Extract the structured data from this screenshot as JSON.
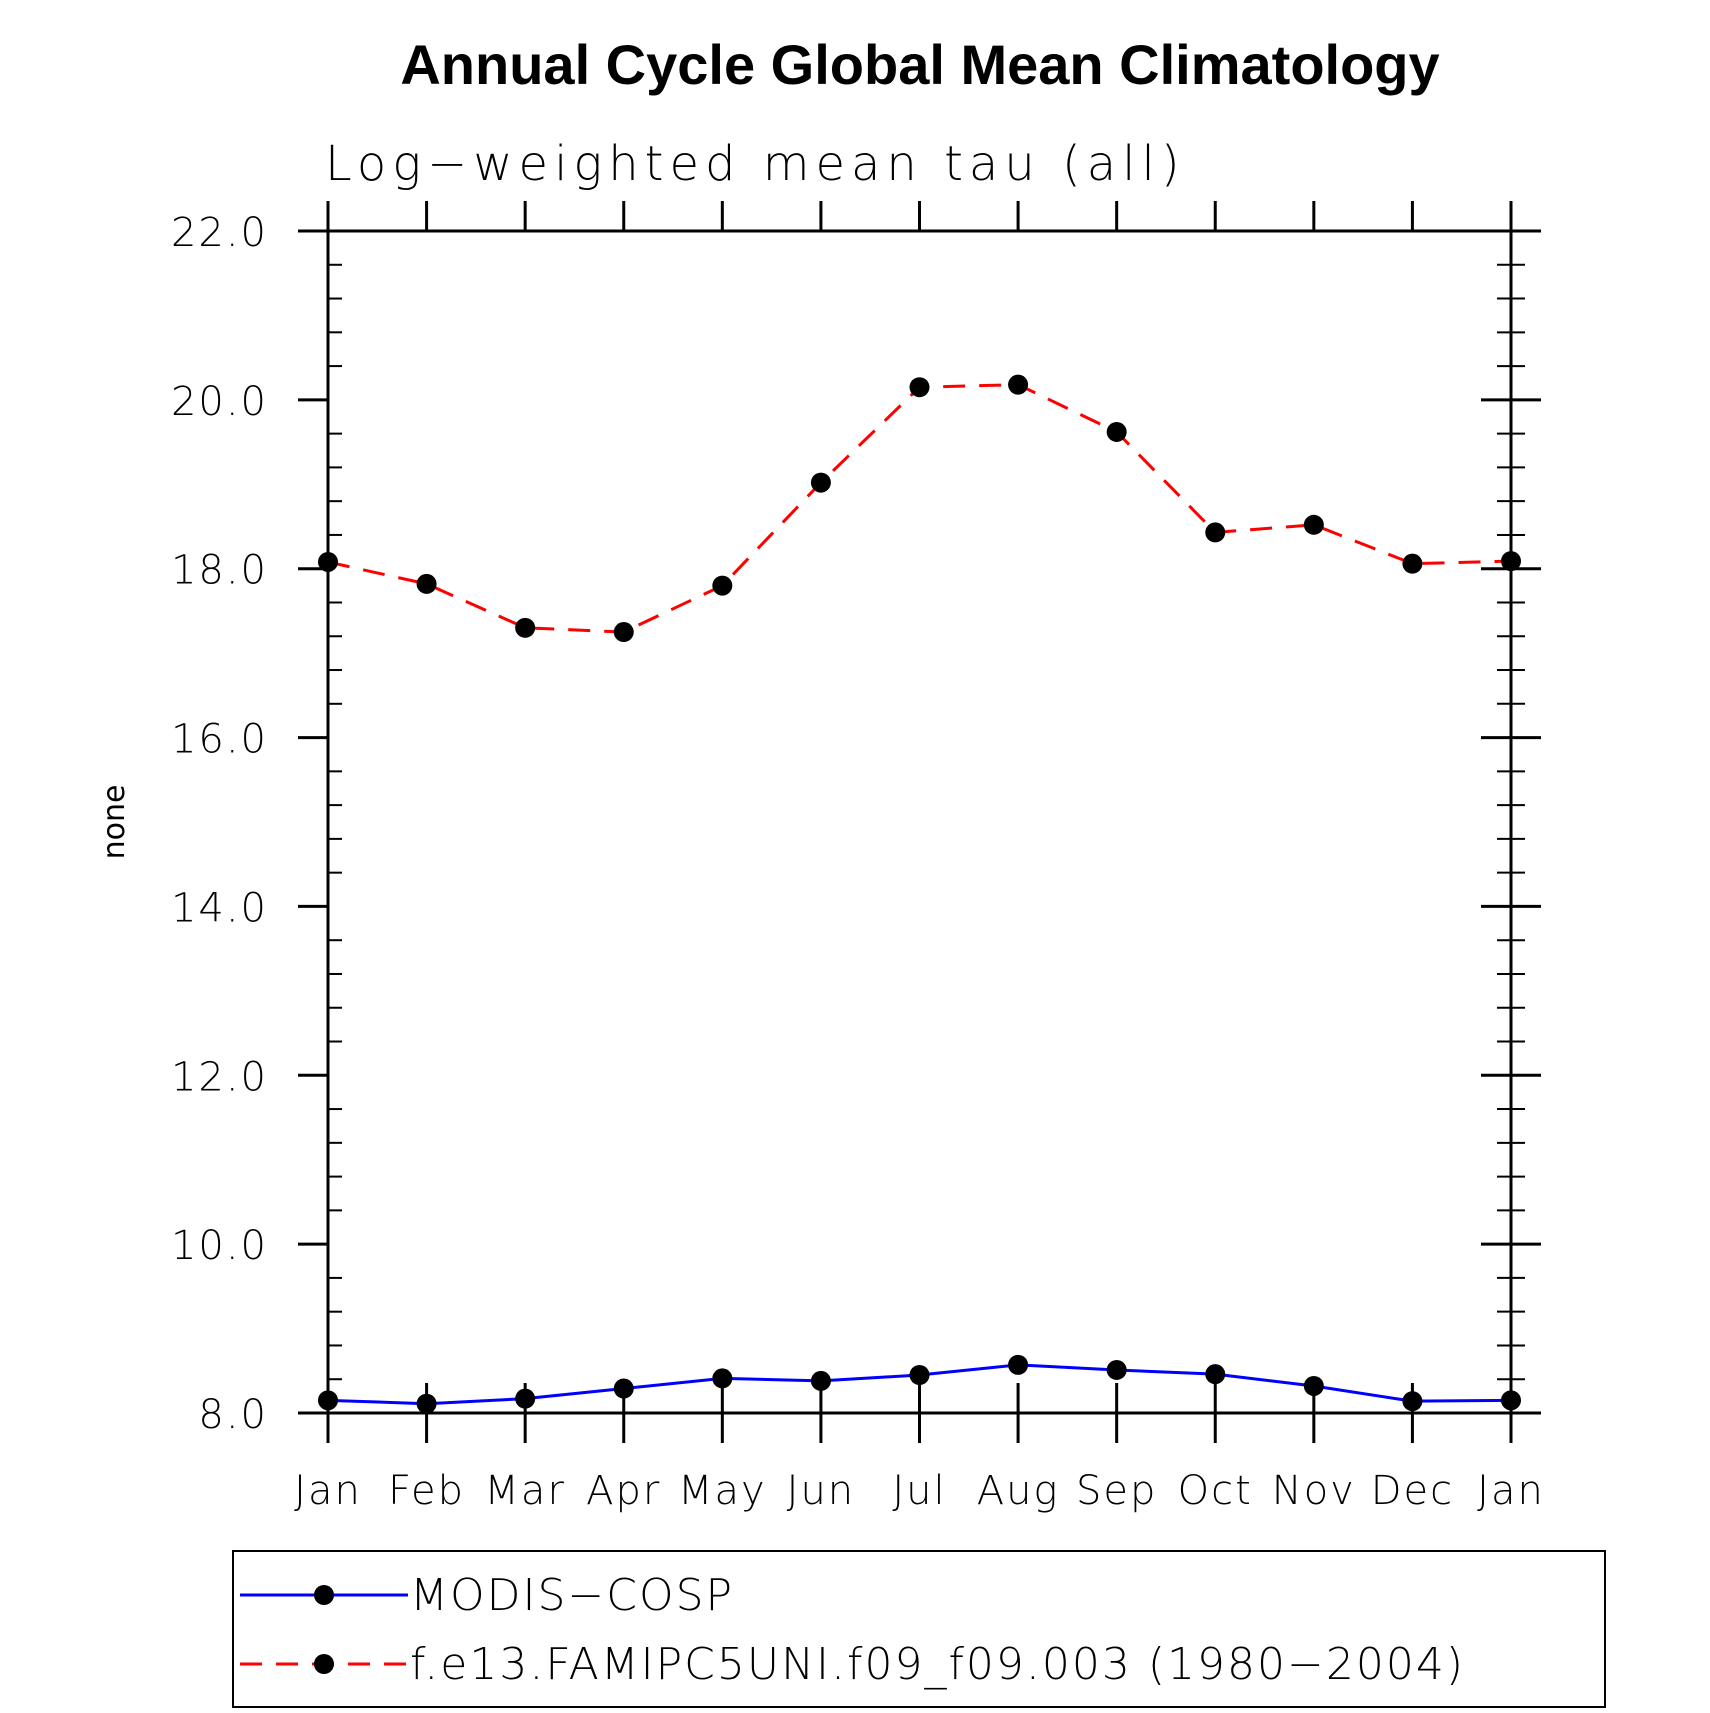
{
  "chart_data": {
    "type": "line",
    "title": "Annual Cycle Global Mean Climatology",
    "subtitle": "Log−weighted mean tau (all)",
    "xlabel": "",
    "ylabel": "none",
    "ylim": [
      8.0,
      22.0
    ],
    "yticks": [
      "22.0",
      "20.0",
      "18.0",
      "16.0",
      "14.0",
      "12.0",
      "10.0",
      "8.0"
    ],
    "categories": [
      "Jan",
      "Feb",
      "Mar",
      "Apr",
      "May",
      "Jun",
      "Jul",
      "Aug",
      "Sep",
      "Oct",
      "Nov",
      "Dec",
      "Jan"
    ],
    "series": [
      {
        "name": "MODIS−COSP",
        "color": "#0000ff",
        "dash": "solid",
        "values": [
          8.15,
          8.11,
          8.17,
          8.29,
          8.41,
          8.38,
          8.45,
          8.57,
          8.51,
          8.46,
          8.32,
          8.14,
          8.15
        ]
      },
      {
        "name": "f.e13.FAMIPC5UNI.f09_f09.003 (1980−2004)",
        "color": "#ff0000",
        "dash": "dashed",
        "values": [
          18.08,
          17.82,
          17.3,
          17.25,
          17.8,
          19.02,
          20.15,
          20.18,
          19.62,
          18.43,
          18.52,
          18.06,
          18.09
        ]
      }
    ],
    "legend_position": "bottom"
  }
}
